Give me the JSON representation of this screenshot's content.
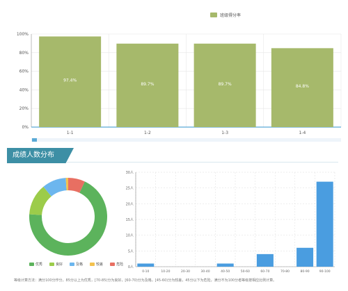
{
  "top_chart": {
    "legend_label": "班级得分率",
    "legend_color": "#a6b96b"
  },
  "section": {
    "title": "成绩人数分布"
  },
  "donut_legend": [
    {
      "label": "优秀",
      "color": "#5cb35c"
    },
    {
      "label": "良好",
      "color": "#9ccc4a"
    },
    {
      "label": "及格",
      "color": "#6cb6ee"
    },
    {
      "label": "较差",
      "color": "#f3c14f"
    },
    {
      "label": "危险",
      "color": "#e86f62"
    }
  ],
  "footer": {
    "text": "等级计算方法：满分100分作分，85分以上为优秀，[70-85)分为良好，[60-70)分为及格，[45-60)分为较差，45分以下为危险，满分不为100分者等级按相应比例计算。"
  },
  "chart_data": [
    {
      "type": "bar",
      "categories": [
        "1-1",
        "1-2",
        "1-3",
        "1-4"
      ],
      "series": [
        {
          "name": "班级得分率",
          "values": [
            97.4,
            89.7,
            89.7,
            84.8
          ],
          "color": "#a6b96b"
        }
      ],
      "data_labels": [
        "97.4%",
        "89.7%",
        "89.7%",
        "84.8%"
      ],
      "yticks": [
        "0%",
        "20%",
        "40%",
        "60%",
        "80%",
        "100%"
      ],
      "ylim": [
        0,
        100
      ],
      "grid": true
    },
    {
      "type": "pie",
      "donut": true,
      "labels": [
        "优秀",
        "良好",
        "及格",
        "较差",
        "危险"
      ],
      "values": [
        69,
        13,
        10,
        1,
        7
      ],
      "colors": [
        "#5cb35c",
        "#9ccc4a",
        "#6cb6ee",
        "#f3c14f",
        "#e86f62"
      ]
    },
    {
      "type": "bar",
      "categories": [
        "0-10",
        "10-20",
        "20-30",
        "30-40",
        "40-50",
        "50-60",
        "60-70",
        "70-80",
        "80-90",
        "90-100"
      ],
      "values": [
        1,
        0,
        0,
        0,
        1,
        0,
        4,
        0,
        6,
        27
      ],
      "color": "#4a9de0",
      "yticks": [
        "0人",
        "5人",
        "10人",
        "15人",
        "20人",
        "25人",
        "30人"
      ],
      "ylim": [
        0,
        30
      ],
      "grid": true
    }
  ]
}
